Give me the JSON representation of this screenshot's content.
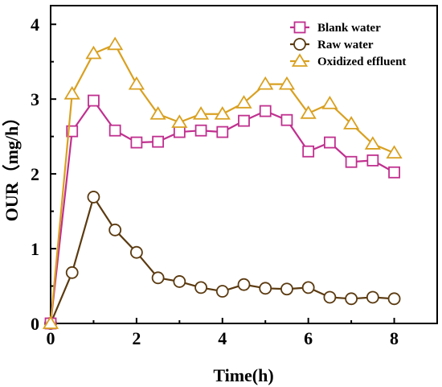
{
  "chart_data": {
    "type": "line",
    "xlabel": "Time(h)",
    "ylabel": "OUR（mg/h）",
    "xlim": [
      0,
      9
    ],
    "ylim": [
      0,
      4.25
    ],
    "xticks": [
      0,
      2,
      4,
      6,
      8
    ],
    "yticks": [
      0,
      1,
      2,
      3,
      4
    ],
    "grid": false,
    "legend_position": "top-right",
    "x": [
      0,
      0.5,
      1,
      1.5,
      2,
      2.5,
      3,
      3.5,
      4,
      4.5,
      5,
      5.5,
      6,
      6.5,
      7,
      7.5,
      8
    ],
    "series": [
      {
        "name": "Blank water",
        "marker": "square",
        "color": "#c0308f",
        "values": [
          0,
          2.57,
          2.98,
          2.58,
          2.42,
          2.43,
          2.56,
          2.58,
          2.56,
          2.71,
          2.84,
          2.72,
          2.3,
          2.42,
          2.16,
          2.18,
          2.02
        ]
      },
      {
        "name": "Raw water",
        "marker": "circle",
        "color": "#5b3a10",
        "values": [
          0,
          0.68,
          1.69,
          1.25,
          0.95,
          0.61,
          0.56,
          0.48,
          0.43,
          0.52,
          0.47,
          0.46,
          0.48,
          0.35,
          0.33,
          0.35,
          0.33
        ]
      },
      {
        "name": "Oxidized effluent",
        "marker": "triangle",
        "color": "#d9a020",
        "values": [
          0,
          3.07,
          3.61,
          3.73,
          3.2,
          2.8,
          2.69,
          2.8,
          2.8,
          2.95,
          3.2,
          3.2,
          2.81,
          2.94,
          2.67,
          2.4,
          2.28
        ]
      }
    ]
  }
}
